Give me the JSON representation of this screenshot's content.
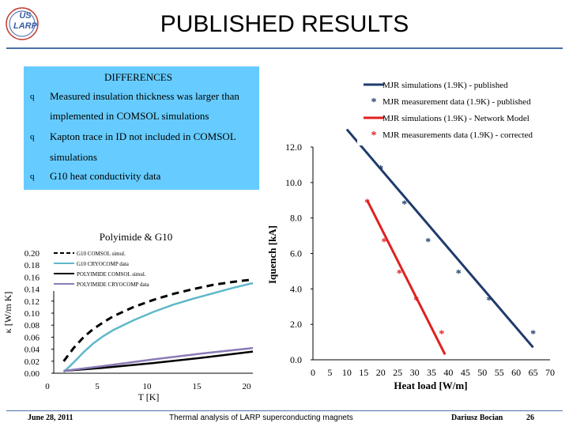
{
  "slide": {
    "title": "PUBLISHED RESULTS",
    "logo_text_1": "US",
    "logo_text_2": "LARP"
  },
  "differences": {
    "heading": "DIFFERENCES",
    "items": [
      {
        "line1": "Measured insulation thickness was larger than",
        "line2": "implemented  in COMSOL simulations"
      },
      {
        "line1": "Kapton trace in ID not included in COMSOL",
        "line2": "simulations"
      },
      {
        "line1": "G10 heat conductivity data",
        "line2": ""
      }
    ],
    "bullet_glyph": "q"
  },
  "footer": {
    "date": "June 28, 2011",
    "center": "Thermal analysis of LARP superconducting magnets",
    "author": "Dariusz Bocian",
    "page": "26"
  },
  "chart_data": [
    {
      "type": "line",
      "title": "Polyimide & G10",
      "xlabel": "T [K]",
      "ylabel": "κ [W/m K]",
      "xlim": [
        0,
        20
      ],
      "ylim": [
        0,
        0.2
      ],
      "x_ticks": [
        0,
        5,
        10,
        15,
        20
      ],
      "y_ticks": [
        "0.20",
        "0.18",
        "0.16",
        "0.14",
        "0.12",
        "0.10",
        "0.08",
        "0.06",
        "0.04",
        "0.02",
        "0.00"
      ],
      "legend_position": "top-left",
      "series": [
        {
          "name": "G10 COMSOL simul.",
          "color": "#000000",
          "dash": true,
          "x": [
            1,
            2,
            3,
            4,
            5,
            6,
            8,
            10,
            12,
            14,
            16,
            18,
            20
          ],
          "y": [
            0.02,
            0.042,
            0.06,
            0.074,
            0.085,
            0.095,
            0.11,
            0.122,
            0.132,
            0.14,
            0.147,
            0.152,
            0.156
          ]
        },
        {
          "name": "G10 CRYOCOMP data",
          "color": "#5fb8c9",
          "dash": false,
          "x": [
            1,
            2,
            3,
            4,
            5,
            6,
            8,
            10,
            12,
            14,
            16,
            18,
            20
          ],
          "y": [
            0.002,
            0.018,
            0.035,
            0.05,
            0.062,
            0.072,
            0.088,
            0.102,
            0.114,
            0.124,
            0.133,
            0.142,
            0.15
          ]
        },
        {
          "name": "POLYIMIDE COMSOL simul.",
          "color": "#000000",
          "dash": false,
          "x": [
            1,
            5,
            10,
            15,
            20
          ],
          "y": [
            0.004,
            0.009,
            0.017,
            0.026,
            0.036
          ]
        },
        {
          "name": "POLYIMIDE CRYOCOMP data",
          "color": "#8a7bb5",
          "dash": false,
          "x": [
            1,
            5,
            10,
            15,
            20
          ],
          "y": [
            0.004,
            0.012,
            0.023,
            0.033,
            0.042
          ]
        }
      ]
    },
    {
      "type": "scatter",
      "xlabel": "Heat load [W/m]",
      "ylabel": "Iquench [kA]",
      "xlim": [
        0,
        70
      ],
      "ylim": [
        0,
        12
      ],
      "x_ticks": [
        0,
        5,
        10,
        15,
        20,
        25,
        30,
        35,
        40,
        45,
        50,
        55,
        60,
        65,
        70
      ],
      "y_ticks": [
        "0.0",
        "2.0",
        "4.0",
        "6.0",
        "8.0",
        "10.0",
        "12.0"
      ],
      "legend_position": "top-right",
      "series": [
        {
          "name": "MJR simulations (1.9K) - published",
          "kind": "line",
          "color": "#1f3b6b",
          "x": [
            10,
            65
          ],
          "y": [
            13,
            0.7
          ]
        },
        {
          "name": "MJR measurement data (1.9K) - published",
          "kind": "points",
          "color": "#1f3b6b",
          "x": [
            20,
            27,
            34,
            43,
            52,
            65
          ],
          "y": [
            10.8,
            8.8,
            6.7,
            4.9,
            3.4,
            1.5
          ]
        },
        {
          "name": "MJR simulations (1.9K) - Network Model",
          "kind": "line",
          "color": "#e02020",
          "x": [
            16,
            39
          ],
          "y": [
            9.0,
            0.3
          ]
        },
        {
          "name": "MJR measurements data (1.9K) - corrected",
          "kind": "points",
          "color": "#e02020",
          "x": [
            16,
            21,
            25.5,
            30.5,
            38
          ],
          "y": [
            8.9,
            6.7,
            4.9,
            3.4,
            1.5
          ]
        }
      ]
    }
  ]
}
